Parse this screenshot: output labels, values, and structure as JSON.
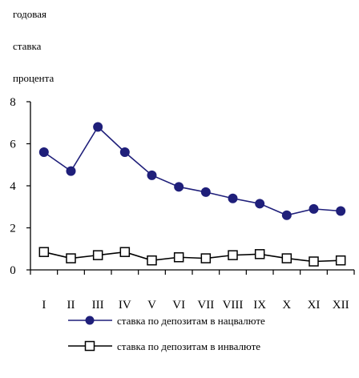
{
  "chart_data": {
    "type": "line",
    "ylabel_lines": [
      "годовая",
      "ставка",
      "процента"
    ],
    "categories": [
      "I",
      "II",
      "III",
      "IV",
      "V",
      "VI",
      "VII",
      "VIII",
      "IX",
      "X",
      "XI",
      "XII"
    ],
    "ylim": [
      0,
      8
    ],
    "yticks": [
      0,
      2,
      4,
      6,
      8
    ],
    "grid": false,
    "legend_position": "bottom",
    "series": [
      {
        "name": "ставка по депозитам в нацвалюте",
        "marker": "filled-circle",
        "color": "#1f1f7a",
        "values": [
          5.6,
          4.7,
          6.8,
          5.6,
          4.5,
          3.95,
          3.7,
          3.4,
          3.15,
          2.6,
          2.9,
          2.8
        ]
      },
      {
        "name": "ставка по депозитам в инвалюте",
        "marker": "open-square",
        "color": "#000000",
        "values": [
          0.85,
          0.55,
          0.7,
          0.85,
          0.45,
          0.6,
          0.55,
          0.7,
          0.75,
          0.55,
          0.4,
          0.45
        ]
      }
    ]
  }
}
